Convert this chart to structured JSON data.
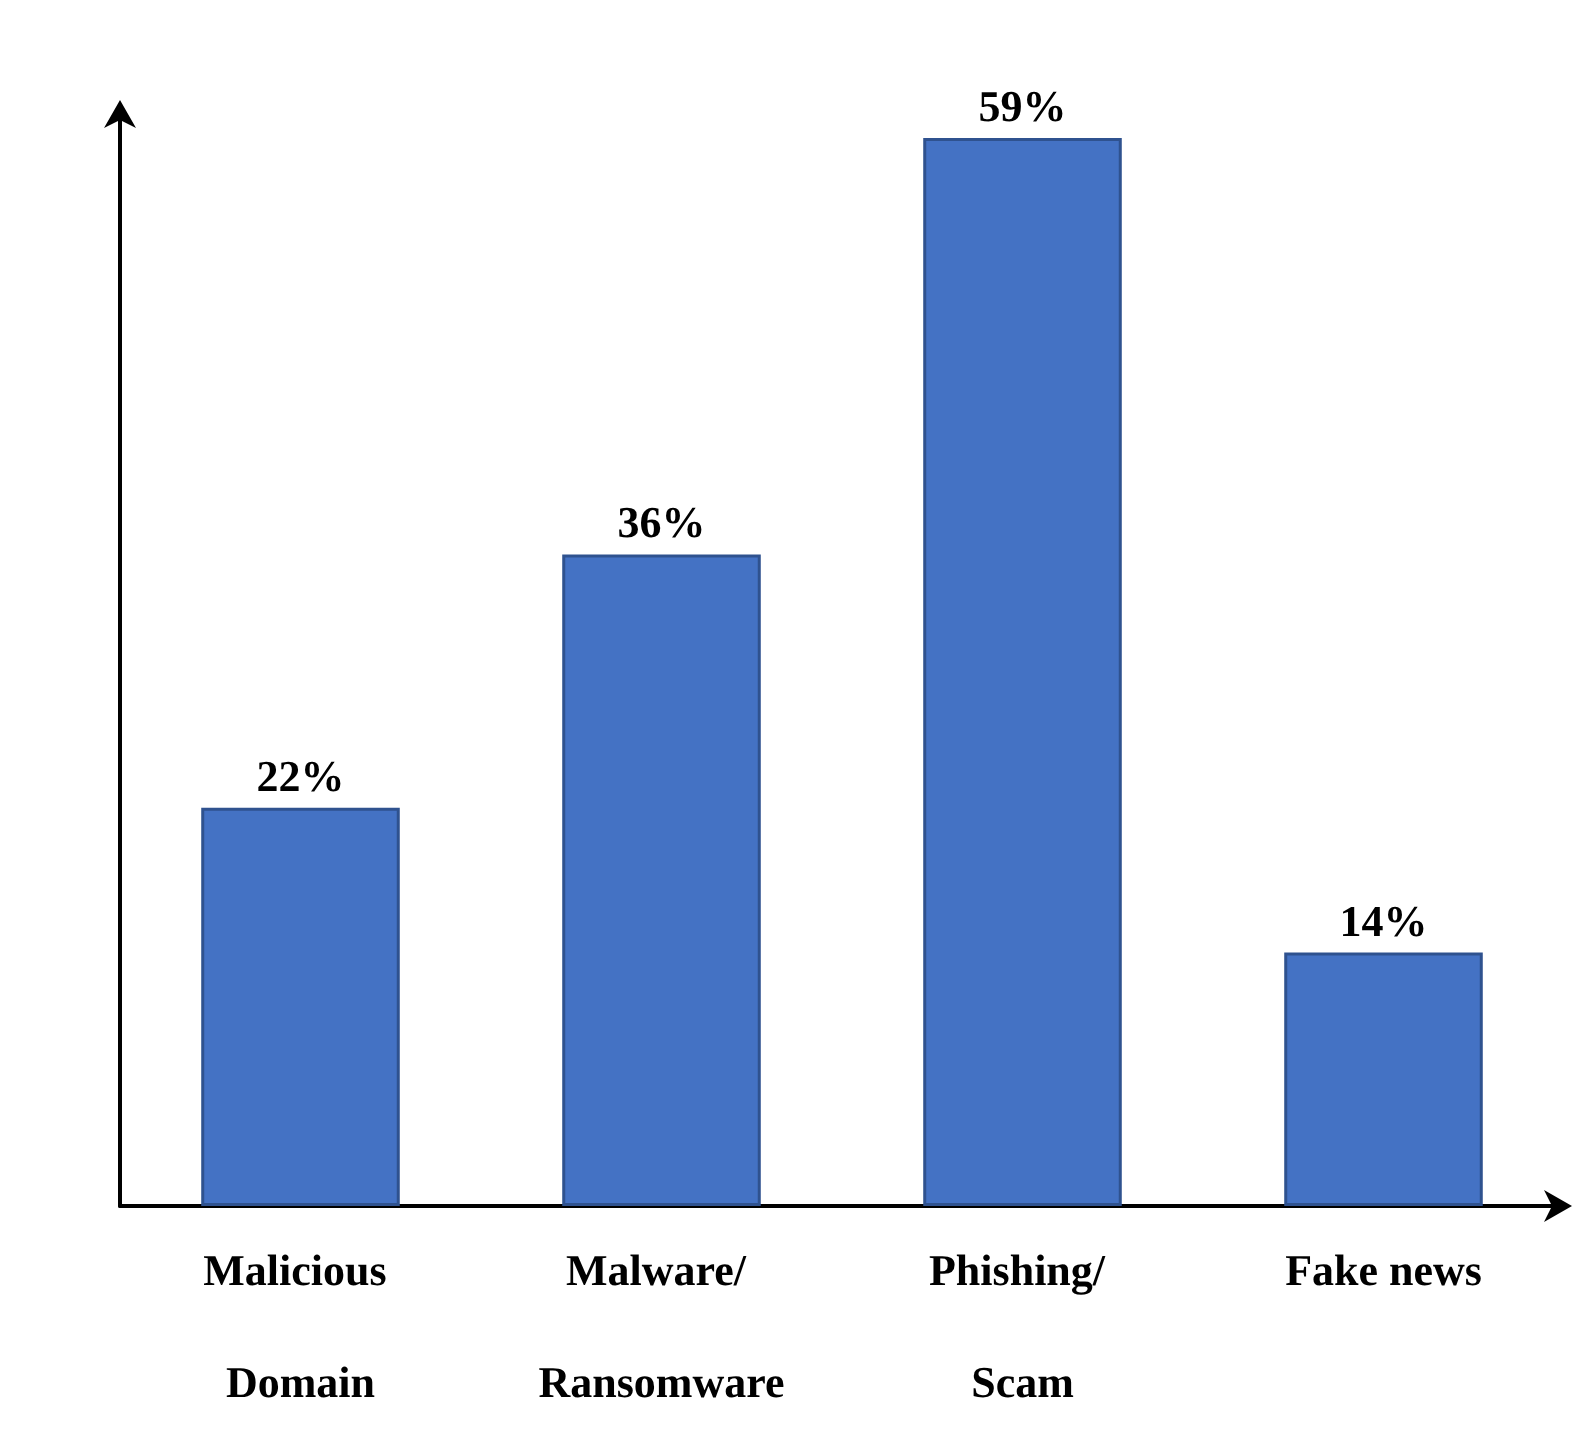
{
  "chart_data": {
    "type": "bar",
    "categories": [
      "Malicious Domain",
      "Malware/ Ransomware",
      "Phishing/ Scam",
      "Fake news"
    ],
    "values": [
      22,
      36,
      59,
      14
    ],
    "value_labels": [
      "22%",
      "36%",
      "59%",
      "14%"
    ],
    "color": "#4472c4",
    "grid": false
  }
}
